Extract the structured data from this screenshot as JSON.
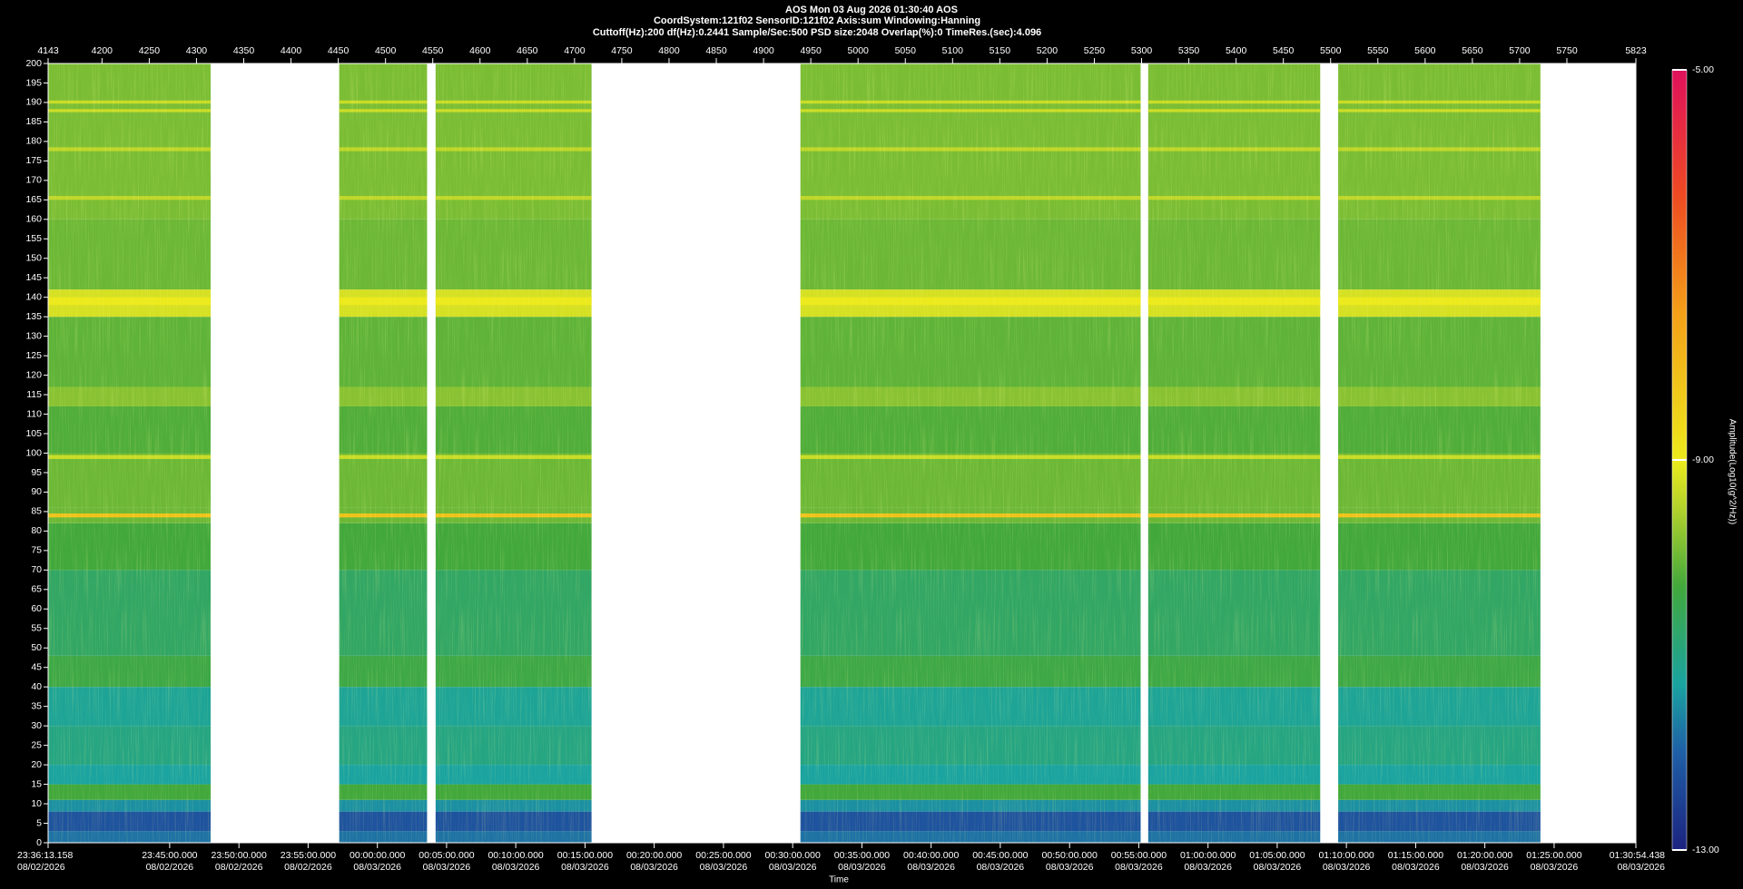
{
  "chart_data": {
    "type": "spectrogram",
    "title_lines": [
      "AOS  Mon 03 Aug 2026 01:30:40  AOS",
      "CoordSystem:121f02   SensorID:121f02   Axis:sum   Windowing:Hanning",
      "Cuttoff(Hz):200       df(Hz):0.2441       Sample/Sec:500       PSD size:2048       Overlap(%):0       TimeRes.(sec):4.096"
    ],
    "x_label": "Time",
    "xlim": [
      4143,
      5823
    ],
    "xticks": [
      4143,
      4200,
      4250,
      4300,
      4350,
      4400,
      4450,
      4500,
      4550,
      4600,
      4650,
      4700,
      4750,
      4800,
      4850,
      4900,
      4950,
      5000,
      5050,
      5100,
      5150,
      5200,
      5250,
      5300,
      5350,
      5400,
      5450,
      5500,
      5550,
      5600,
      5650,
      5700,
      5750,
      5823
    ],
    "x2ticks": [
      {
        "value": 4143,
        "label": "23:36:13.158"
      },
      {
        "value": 4271.6,
        "label": "23:45:00.000"
      },
      {
        "value": 4344.9,
        "label": "23:50:00.000"
      },
      {
        "value": 4418.1,
        "label": "23:55:00.000"
      },
      {
        "value": 4491.4,
        "label": "00:00:00.000"
      },
      {
        "value": 4564.6,
        "label": "00:05:00.000"
      },
      {
        "value": 4637.8,
        "label": "00:10:00.000"
      },
      {
        "value": 4711.1,
        "label": "00:15:00.000"
      },
      {
        "value": 4784.3,
        "label": "00:20:00.000"
      },
      {
        "value": 4857.6,
        "label": "00:25:00.000"
      },
      {
        "value": 4930.8,
        "label": "00:30:00.000"
      },
      {
        "value": 5004.1,
        "label": "00:35:00.000"
      },
      {
        "value": 5077.3,
        "label": "00:40:00.000"
      },
      {
        "value": 5150.5,
        "label": "00:45:00.000"
      },
      {
        "value": 5223.8,
        "label": "00:50:00.000"
      },
      {
        "value": 5297.0,
        "label": "00:55:00.000"
      },
      {
        "value": 5370.3,
        "label": "01:00:00.000"
      },
      {
        "value": 5443.5,
        "label": "01:05:00.000"
      },
      {
        "value": 5516.7,
        "label": "01:10:00.000"
      },
      {
        "value": 5590.0,
        "label": "01:15:00.000"
      },
      {
        "value": 5663.2,
        "label": "01:20:00.000"
      },
      {
        "value": 5736.5,
        "label": "01:25:00.000"
      },
      {
        "value": 5823,
        "label": "01:30:54.438"
      }
    ],
    "x2tick_dates": [
      "08/02/2026",
      "08/02/2026",
      "08/02/2026",
      "08/02/2026",
      "08/03/2026",
      "08/03/2026",
      "08/03/2026",
      "08/03/2026",
      "08/03/2026",
      "08/03/2026",
      "08/03/2026",
      "08/03/2026",
      "08/03/2026",
      "08/03/2026",
      "08/03/2026",
      "08/03/2026",
      "08/03/2026",
      "08/03/2026",
      "08/03/2026",
      "08/03/2026",
      "08/03/2026",
      "08/03/2026",
      "08/03/2026"
    ],
    "ylim": [
      0,
      200
    ],
    "yticks": [
      0,
      5,
      10,
      15,
      20,
      25,
      30,
      35,
      40,
      45,
      50,
      55,
      60,
      65,
      70,
      75,
      80,
      85,
      90,
      95,
      100,
      105,
      110,
      115,
      120,
      125,
      130,
      135,
      140,
      145,
      150,
      155,
      160,
      165,
      170,
      175,
      180,
      185,
      190,
      195,
      200
    ],
    "segments": [
      [
        4143,
        4315
      ],
      [
        4451,
        4544
      ],
      [
        4553,
        4718
      ],
      [
        4939,
        5299
      ],
      [
        5307,
        5489
      ],
      [
        5508,
        5722
      ]
    ],
    "bands": [
      {
        "from": 0,
        "to": 3,
        "value": -11.8
      },
      {
        "from": 3,
        "to": 8,
        "value": -12.2
      },
      {
        "from": 8,
        "to": 11,
        "value": -11.5
      },
      {
        "from": 11,
        "to": 15,
        "value": -10.3
      },
      {
        "from": 15,
        "to": 20,
        "value": -11.3
      },
      {
        "from": 20,
        "to": 30,
        "value": -11.0
      },
      {
        "from": 30,
        "to": 40,
        "value": -11.2
      },
      {
        "from": 40,
        "to": 48,
        "value": -10.4
      },
      {
        "from": 48,
        "to": 70,
        "value": -10.7
      },
      {
        "from": 70,
        "to": 82,
        "value": -10.3
      },
      {
        "from": 82,
        "to": 86,
        "value": -10.0
      },
      {
        "from": 86,
        "to": 100,
        "value": -10.0
      },
      {
        "from": 100,
        "to": 112,
        "value": -10.2
      },
      {
        "from": 112,
        "to": 117,
        "value": -9.8
      },
      {
        "from": 117,
        "to": 135,
        "value": -10.1
      },
      {
        "from": 135,
        "to": 142,
        "value": -9.2
      },
      {
        "from": 142,
        "to": 160,
        "value": -10.0
      },
      {
        "from": 160,
        "to": 200,
        "value": -9.9
      },
      {
        "from": 83.5,
        "to": 84.5,
        "value": -8.2
      },
      {
        "from": 98.5,
        "to": 99.5,
        "value": -9.3
      },
      {
        "from": 165,
        "to": 166,
        "value": -9.4
      },
      {
        "from": 177.5,
        "to": 178.5,
        "value": -9.4
      },
      {
        "from": 187.5,
        "to": 188.3,
        "value": -9.3
      },
      {
        "from": 189.7,
        "to": 190.5,
        "value": -9.3
      },
      {
        "from": 138,
        "to": 140,
        "value": -9.0
      }
    ],
    "colorbar": {
      "label": "Amplitude(Log10(g^2/Hz))",
      "lim": [
        -13,
        -5
      ],
      "ticks": [
        {
          "value": -5,
          "label": "-5.00"
        },
        {
          "value": -9,
          "label": "-9.00"
        },
        {
          "value": -13,
          "label": "-13.00"
        }
      ],
      "stops": [
        {
          "value": -13,
          "color": "#1c237f"
        },
        {
          "value": -12,
          "color": "#1f5fa6"
        },
        {
          "value": -11.3,
          "color": "#1aa3a0"
        },
        {
          "value": -10.3,
          "color": "#42a83c"
        },
        {
          "value": -9.5,
          "color": "#b2d22c"
        },
        {
          "value": -9,
          "color": "#ecea1c"
        },
        {
          "value": -7.5,
          "color": "#f4a018"
        },
        {
          "value": -6.3,
          "color": "#ee4b22"
        },
        {
          "value": -5,
          "color": "#e0105c"
        }
      ]
    }
  }
}
